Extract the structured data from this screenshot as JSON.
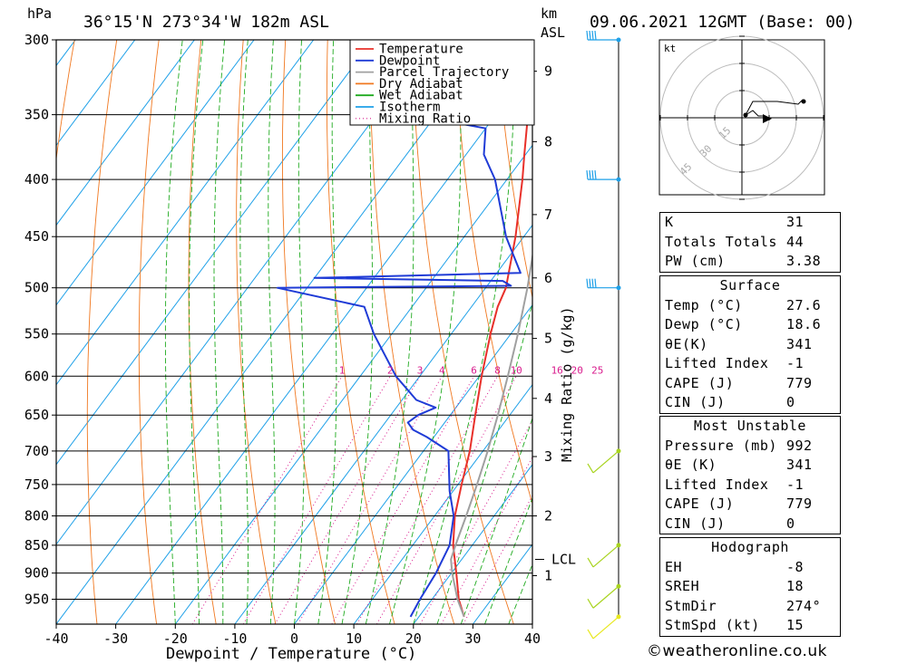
{
  "header": {
    "hpa_label": "hPa",
    "location": "36°15'N  273°34'W  182m  ASL",
    "km_label": "km",
    "asl_label": "ASL",
    "datetime": "09.06.2021  12GMT  (Base: 00)"
  },
  "chart_data": {
    "type": "line",
    "title": "36°15'N  273°34'W  182m  ASL",
    "xlabel": "Dewpoint / Temperature (°C)",
    "ylabel": "hPa",
    "x_ticks": [
      -40,
      -30,
      -20,
      -10,
      0,
      10,
      20,
      30,
      40
    ],
    "y_ticks": [
      300,
      350,
      400,
      450,
      500,
      550,
      600,
      650,
      700,
      750,
      800,
      850,
      900,
      950
    ],
    "xlim": [
      -40,
      40
    ],
    "ylim": [
      1000,
      300
    ],
    "y_scale": "log",
    "skew": true,
    "km_ticks": [
      {
        "label": "9",
        "p": 320
      },
      {
        "label": "8",
        "p": 370
      },
      {
        "label": "7",
        "p": 430
      },
      {
        "label": "6",
        "p": 490
      },
      {
        "label": "5",
        "p": 555
      },
      {
        "label": "4",
        "p": 628
      },
      {
        "label": "3",
        "p": 708
      },
      {
        "label": "2",
        "p": 800
      },
      {
        "label": "1",
        "p": 905
      }
    ],
    "lcl": {
      "label": "LCL",
      "p": 875
    },
    "mixing_ratio_axis_label": "Mixing Ratio (g/kg)",
    "mixing_ratio_labels": [
      "1",
      "2",
      "3",
      "4",
      "6",
      "8",
      "10",
      "16",
      "20",
      "25"
    ],
    "mixing_ratio_values": [
      1,
      2,
      3,
      4,
      6,
      8,
      10,
      16,
      20,
      25
    ],
    "legend": {
      "position": "top-right",
      "entries": [
        {
          "name": "Temperature",
          "color": "#e8302a",
          "style": "solid"
        },
        {
          "name": "Dewpoint",
          "color": "#1f3bd6",
          "style": "solid"
        },
        {
          "name": "Parcel Trajectory",
          "color": "#a0a0a0",
          "style": "solid"
        },
        {
          "name": "Dry Adiabat",
          "color": "#f07820",
          "style": "solid"
        },
        {
          "name": "Wet Adiabat",
          "color": "#1faa1f",
          "style": "solid"
        },
        {
          "name": "Isotherm",
          "color": "#1ea0e8",
          "style": "solid"
        },
        {
          "name": "Mixing Ratio",
          "color": "#d81a8c",
          "style": "dotted"
        }
      ]
    },
    "series": [
      {
        "name": "Temperature",
        "color": "#e8302a",
        "points": [
          [
            985,
            27.6
          ],
          [
            950,
            24.5
          ],
          [
            900,
            20.8
          ],
          [
            850,
            16.8
          ],
          [
            800,
            13.4
          ],
          [
            750,
            10.6
          ],
          [
            700,
            7.8
          ],
          [
            650,
            4.2
          ],
          [
            600,
            0.4
          ],
          [
            550,
            -3.4
          ],
          [
            520,
            -5.6
          ],
          [
            500,
            -6.6
          ],
          [
            450,
            -11.4
          ],
          [
            400,
            -17.4
          ],
          [
            380,
            -20.2
          ],
          [
            350,
            -24.6
          ],
          [
            330,
            -28.2
          ],
          [
            300,
            -33.8
          ]
        ]
      },
      {
        "name": "Dewpoint",
        "color": "#1f3bd6",
        "points": [
          [
            985,
            18.6
          ],
          [
            950,
            18.0
          ],
          [
            900,
            17.4
          ],
          [
            850,
            16.2
          ],
          [
            800,
            13.2
          ],
          [
            760,
            9.4
          ],
          [
            700,
            4.2
          ],
          [
            680,
            -1.2
          ],
          [
            670,
            -4.4
          ],
          [
            660,
            -6.2
          ],
          [
            650,
            -5.4
          ],
          [
            640,
            -3.4
          ],
          [
            630,
            -7.6
          ],
          [
            600,
            -14
          ],
          [
            550,
            -23
          ],
          [
            520,
            -28
          ],
          [
            500,
            -45
          ],
          [
            498,
            -6
          ],
          [
            493,
            -8
          ],
          [
            490,
            -40
          ],
          [
            485,
            -6
          ],
          [
            450,
            -13
          ],
          [
            400,
            -22
          ],
          [
            380,
            -27
          ],
          [
            360,
            -30
          ],
          [
            355,
            -37
          ],
          [
            345,
            -37
          ],
          [
            335,
            -35
          ],
          [
            325,
            -41
          ],
          [
            315,
            -42
          ],
          [
            308,
            -42
          ],
          [
            300,
            -47
          ]
        ]
      },
      {
        "name": "Parcel Trajectory",
        "color": "#a0a0a0",
        "points": [
          [
            985,
            27.6
          ],
          [
            950,
            24.3
          ],
          [
            900,
            20.1
          ],
          [
            875,
            18.2
          ],
          [
            850,
            17.2
          ],
          [
            800,
            15.3
          ],
          [
            750,
            13.2
          ],
          [
            700,
            10.8
          ],
          [
            650,
            8.0
          ],
          [
            600,
            4.8
          ],
          [
            550,
            1.2
          ],
          [
            500,
            -3.0
          ],
          [
            450,
            -8.0
          ],
          [
            400,
            -14.0
          ],
          [
            350,
            -21.5
          ],
          [
            300,
            -30.8
          ]
        ]
      }
    ],
    "wind_barbs": [
      {
        "p": 300,
        "color": "#1ea0e8"
      },
      {
        "p": 400,
        "color": "#1ea0e8"
      },
      {
        "p": 500,
        "color": "#1ea0e8"
      },
      {
        "p": 700,
        "color": "#a8d41e"
      },
      {
        "p": 850,
        "color": "#a8d41e"
      },
      {
        "p": 925,
        "color": "#a8d41e"
      },
      {
        "p": 985,
        "color": "#e8e81e"
      }
    ]
  },
  "hodograph": {
    "unit_label": "kt",
    "ring_labels": [
      "15",
      "30",
      "45"
    ]
  },
  "indices_table": {
    "rows": [
      {
        "label": "K",
        "value": "31"
      },
      {
        "label": "Totals Totals",
        "value": "44"
      },
      {
        "label": "PW (cm)",
        "value": "3.38"
      }
    ]
  },
  "surface_table": {
    "title": "Surface",
    "rows": [
      {
        "label": "Temp (°C)",
        "value": "27.6"
      },
      {
        "label": "Dewp (°C)",
        "value": "18.6"
      },
      {
        "label": "θE(K)",
        "value": "341"
      },
      {
        "label": "Lifted Index",
        "value": "-1"
      },
      {
        "label": "CAPE (J)",
        "value": "779"
      },
      {
        "label": "CIN (J)",
        "value": "0"
      }
    ]
  },
  "unstable_table": {
    "title": "Most Unstable",
    "rows": [
      {
        "label": "Pressure (mb)",
        "value": "992"
      },
      {
        "label": "θE (K)",
        "value": "341"
      },
      {
        "label": "Lifted Index",
        "value": "-1"
      },
      {
        "label": "CAPE (J)",
        "value": "779"
      },
      {
        "label": "CIN (J)",
        "value": "0"
      }
    ]
  },
  "hodograph_table": {
    "title": "Hodograph",
    "rows": [
      {
        "label": "EH",
        "value": "-8"
      },
      {
        "label": "SREH",
        "value": "18"
      },
      {
        "label": "StmDir",
        "value": "274°"
      },
      {
        "label": "StmSpd (kt)",
        "value": "15"
      }
    ]
  },
  "footer": {
    "credit": "©weatheronline.co.uk"
  },
  "colors": {
    "temperature": "#e8302a",
    "dewpoint": "#1f3bd6",
    "parcel": "#a0a0a0",
    "dry_adiabat": "#f07820",
    "wet_adiabat": "#1faa1f",
    "isotherm": "#1ea0e8",
    "mixing_ratio": "#d81a8c"
  }
}
